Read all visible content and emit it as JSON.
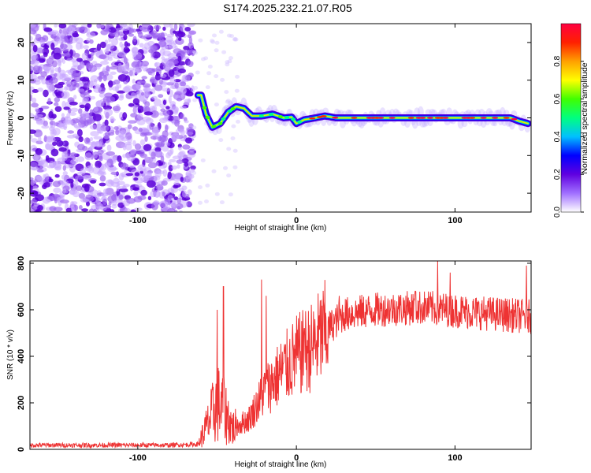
{
  "title": "S174.2025.232.21.07.R05",
  "chart_data": [
    {
      "type": "heatmap",
      "xlabel": "Height of straight line (km)",
      "ylabel": "Frequency (Hz)",
      "xlim": [
        -168,
        148
      ],
      "ylim": [
        -25,
        25
      ],
      "x_ticks": [
        -100,
        0,
        100
      ],
      "y_ticks": [
        -20,
        -10,
        0,
        10,
        20
      ],
      "noise_region_x": [
        -168,
        -65
      ],
      "signal_trace": [
        {
          "x": -62,
          "f": 6
        },
        {
          "x": -60,
          "f": 6
        },
        {
          "x": -57,
          "f": 1
        },
        {
          "x": -53,
          "f": -2.5
        },
        {
          "x": -48,
          "f": -1.5
        },
        {
          "x": -43,
          "f": 1.5
        },
        {
          "x": -38,
          "f": 3
        },
        {
          "x": -33,
          "f": 2.5
        },
        {
          "x": -28,
          "f": 0.5
        },
        {
          "x": -22,
          "f": 0.5
        },
        {
          "x": -15,
          "f": 1
        },
        {
          "x": -8,
          "f": 0
        },
        {
          "x": -3,
          "f": 0.2
        },
        {
          "x": 0,
          "f": -1.5
        },
        {
          "x": 5,
          "f": -0.5
        },
        {
          "x": 12,
          "f": 0
        },
        {
          "x": 18,
          "f": 0.5
        },
        {
          "x": 25,
          "f": 0
        },
        {
          "x": 40,
          "f": 0
        },
        {
          "x": 60,
          "f": 0
        },
        {
          "x": 80,
          "f": 0
        },
        {
          "x": 100,
          "f": 0
        },
        {
          "x": 120,
          "f": 0
        },
        {
          "x": 135,
          "f": 0
        },
        {
          "x": 140,
          "f": -0.8
        },
        {
          "x": 146,
          "f": -1.5
        }
      ],
      "colorbar": {
        "label": "Normalized spectral amplitude",
        "range": [
          0,
          1
        ],
        "ticks": [
          "0.0",
          "0.2",
          "0.4",
          "0.6",
          "0.8"
        ],
        "colors": [
          "#ffffff",
          "#a070ff",
          "#6000e0",
          "#0000ff",
          "#00c0ff",
          "#00ff80",
          "#40ff00",
          "#ffff00",
          "#ffa000",
          "#ff2000",
          "#ff0040"
        ]
      }
    },
    {
      "type": "line",
      "xlabel": "Height of straight line (km)",
      "ylabel": "SNR (10 * v/v)",
      "xlim": [
        -168,
        148
      ],
      "ylim": [
        0,
        810
      ],
      "x_ticks": [
        -100,
        0,
        100
      ],
      "y_ticks": [
        0,
        200,
        400,
        600,
        800
      ],
      "color": "#ee3333",
      "profile": [
        {
          "x": -168,
          "snr": 18
        },
        {
          "x": -80,
          "snr": 18
        },
        {
          "x": -62,
          "snr": 22
        },
        {
          "x": -55,
          "snr": 120
        },
        {
          "x": -50,
          "snr": 200
        },
        {
          "x": -45,
          "snr": 160
        },
        {
          "x": -40,
          "snr": 90
        },
        {
          "x": -30,
          "snr": 130
        },
        {
          "x": -20,
          "snr": 250
        },
        {
          "x": -10,
          "snr": 330
        },
        {
          "x": 0,
          "snr": 400
        },
        {
          "x": 10,
          "snr": 440
        },
        {
          "x": 20,
          "snr": 520
        },
        {
          "x": 30,
          "snr": 580
        },
        {
          "x": 50,
          "snr": 600
        },
        {
          "x": 80,
          "snr": 610
        },
        {
          "x": 110,
          "snr": 590
        },
        {
          "x": 148,
          "snr": 570
        }
      ],
      "spikes": [
        {
          "x": -50,
          "snr": 600
        },
        {
          "x": -46,
          "snr": 700
        },
        {
          "x": -22,
          "snr": 730
        },
        {
          "x": -19,
          "snr": 660
        },
        {
          "x": 5,
          "snr": 520
        },
        {
          "x": 27,
          "snr": 660
        },
        {
          "x": 75,
          "snr": 680
        },
        {
          "x": 89,
          "snr": 810
        },
        {
          "x": 97,
          "snr": 760
        },
        {
          "x": 145,
          "snr": 790
        }
      ]
    }
  ]
}
